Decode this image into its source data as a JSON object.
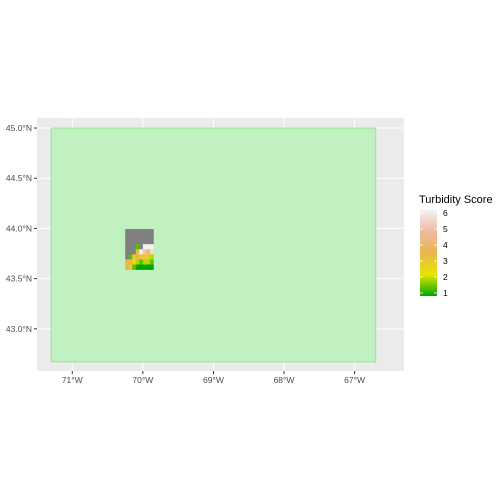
{
  "map": {
    "x_ticks": [
      {
        "value": -71,
        "label": "71°W"
      },
      {
        "value": -70,
        "label": "70°W"
      },
      {
        "value": -69,
        "label": "69°W"
      },
      {
        "value": -68,
        "label": "68°W"
      },
      {
        "value": -67,
        "label": "67°W"
      }
    ],
    "y_ticks": [
      {
        "value": 45.0,
        "label": "45.0°N"
      },
      {
        "value": 44.5,
        "label": "44.5°N"
      },
      {
        "value": 44.0,
        "label": "44.0°N"
      },
      {
        "value": 43.5,
        "label": "43.5°N"
      },
      {
        "value": 43.0,
        "label": "43.0°N"
      }
    ],
    "xlim": [
      -71.5,
      -66.3
    ],
    "ylim": [
      42.58,
      45.1
    ],
    "extent_box": {
      "lon_min": -71.3,
      "lon_max": -66.7,
      "lat_min": 42.67,
      "lat_max": 45.0,
      "fill": "#c1f0c1",
      "stroke": "#86e486"
    },
    "raster": {
      "lon_min": -70.25,
      "lat_min": 43.59,
      "cell_lon": 0.05,
      "cell_lat": 0.0506,
      "na_color": "#808080",
      "rows": [
        [
          null,
          null,
          null,
          null,
          null,
          null,
          null,
          null
        ],
        [
          null,
          null,
          null,
          null,
          null,
          null,
          null,
          null
        ],
        [
          null,
          null,
          null,
          null,
          null,
          null,
          null,
          null
        ],
        [
          null,
          null,
          null,
          1.5,
          null,
          6,
          6,
          6
        ],
        [
          null,
          null,
          null,
          3.5,
          6,
          5,
          4,
          5.5
        ],
        [
          null,
          1.5,
          3,
          3.5,
          3,
          3,
          3,
          2
        ],
        [
          3.5,
          3.5,
          2.5,
          2,
          1.5,
          2,
          2,
          1.5
        ],
        [
          3.5,
          3,
          1.5,
          1,
          1,
          1,
          1,
          1
        ]
      ]
    },
    "legend": {
      "title": "Turbidity Score",
      "min": 1,
      "max": 6,
      "ticks": [
        1,
        2,
        3,
        4,
        5,
        6
      ],
      "colors": [
        "#00a600",
        "#e6e600",
        "#eab64e",
        "#eeb99f",
        "#f2f2f2"
      ]
    },
    "colors": {
      "panel": "#ebebeb",
      "grid_major": "#ffffff",
      "tick": "#333333"
    }
  }
}
